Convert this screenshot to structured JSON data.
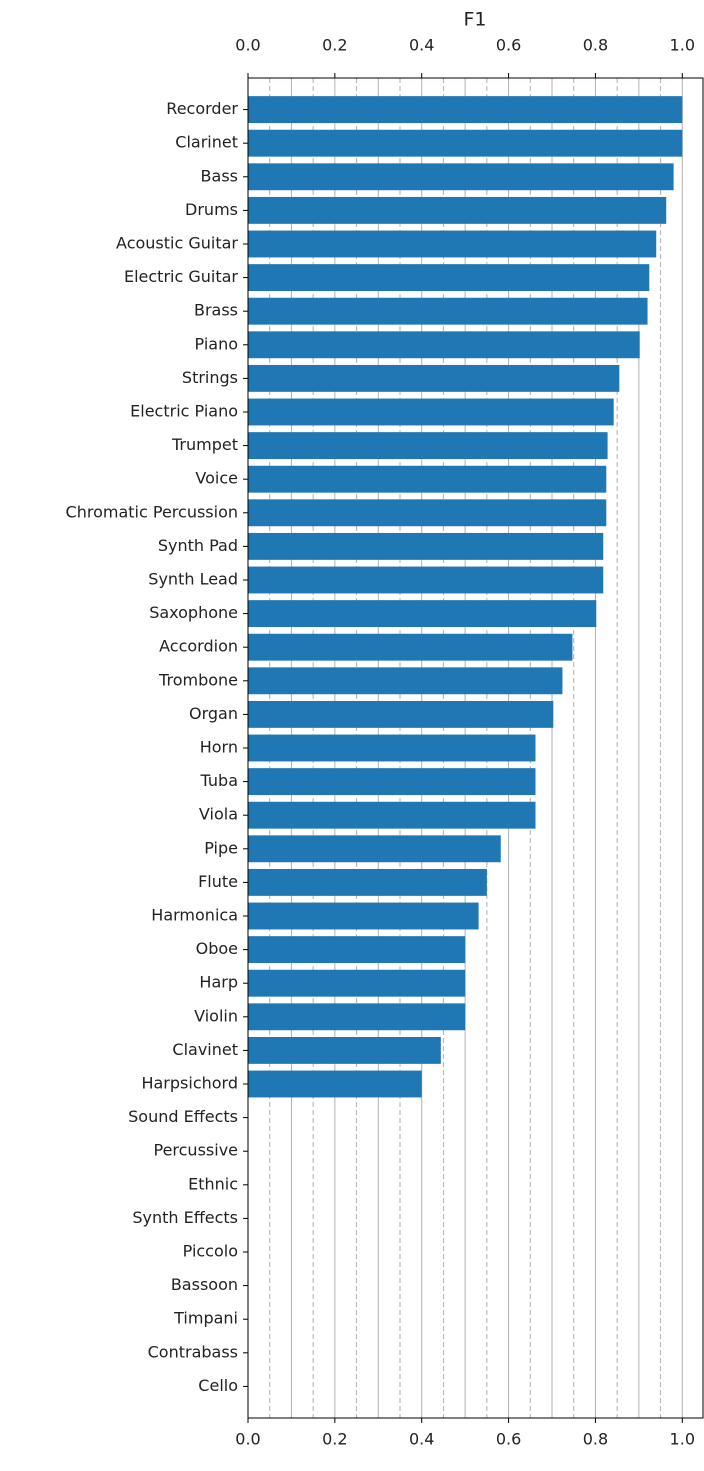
{
  "chart_data": {
    "type": "barh",
    "title": "F1",
    "categories": [
      "Recorder",
      "Clarinet",
      "Bass",
      "Drums",
      "Acoustic Guitar",
      "Electric Guitar",
      "Brass",
      "Piano",
      "Strings",
      "Electric Piano",
      "Trumpet",
      "Voice",
      "Chromatic Percussion",
      "Synth Pad",
      "Synth Lead",
      "Saxophone",
      "Accordion",
      "Trombone",
      "Organ",
      "Horn",
      "Tuba",
      "Viola",
      "Pipe",
      "Flute",
      "Harmonica",
      "Oboe",
      "Harp",
      "Violin",
      "Clavinet",
      "Harpsichord",
      "Sound Effects",
      "Percussive",
      "Ethnic",
      "Synth Effects",
      "Piccolo",
      "Bassoon",
      "Timpani",
      "Contrabass",
      "Cello"
    ],
    "values": [
      1.0,
      1.0,
      0.98,
      0.963,
      0.94,
      0.924,
      0.92,
      0.902,
      0.855,
      0.842,
      0.828,
      0.825,
      0.825,
      0.818,
      0.818,
      0.802,
      0.747,
      0.724,
      0.703,
      0.662,
      0.662,
      0.662,
      0.582,
      0.55,
      0.531,
      0.5,
      0.5,
      0.5,
      0.444,
      0.4,
      0,
      0,
      0,
      0,
      0,
      0,
      0,
      0,
      0
    ],
    "color": "#1f77b4",
    "xlim": [
      0,
      1.05
    ],
    "xticks": [
      {
        "value": 0,
        "label": "0.0"
      },
      0.2,
      0.4,
      0.6,
      0.8,
      {
        "value": 1,
        "label": "1.0"
      }
    ],
    "grid_major": [
      0.1,
      0.2,
      0.3,
      0.4,
      0.5,
      0.6,
      0.7,
      0.8,
      0.9,
      1.0
    ],
    "grid_minor": [
      0.05,
      0.15,
      0.25,
      0.35,
      0.45,
      0.55,
      0.65,
      0.75,
      0.85,
      0.95
    ]
  }
}
